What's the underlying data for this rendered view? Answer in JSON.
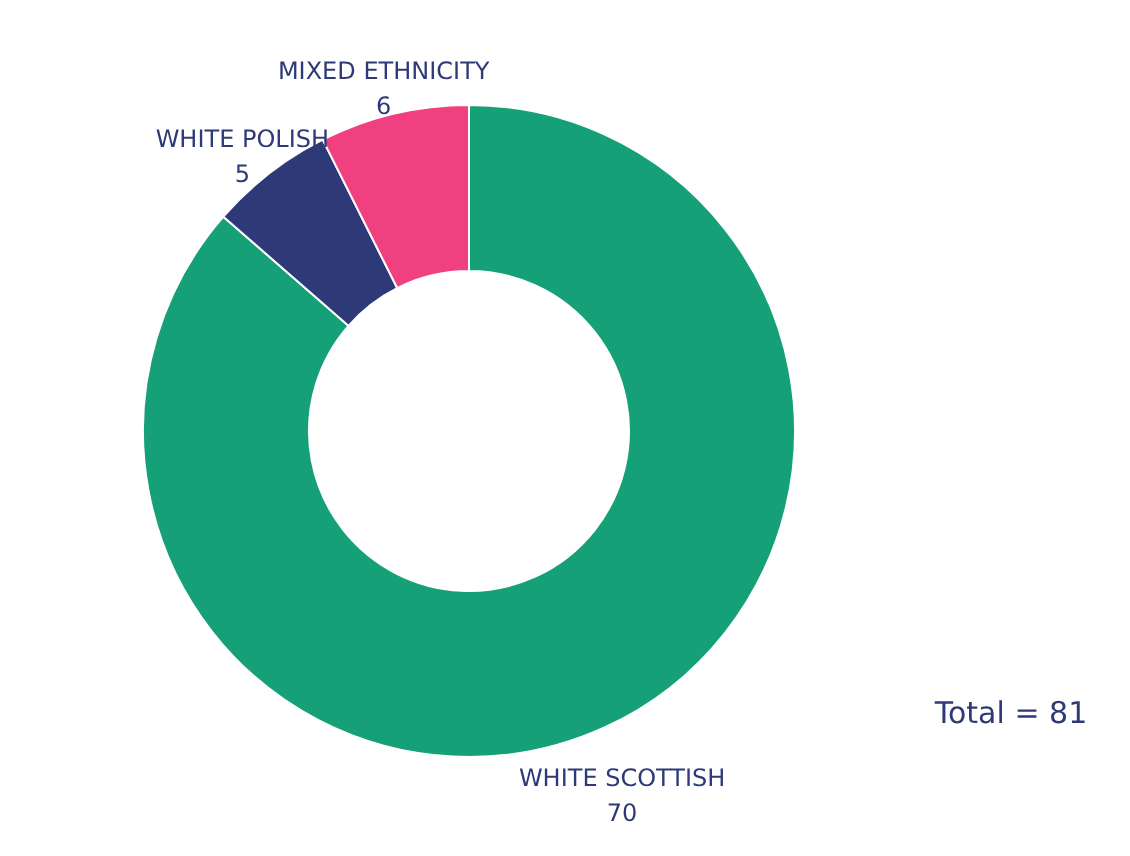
{
  "chart_data": {
    "type": "donut",
    "categories": [
      "WHITE SCOTTISH",
      "WHITE POLISH",
      "MIXED ETHNICITY"
    ],
    "values": [
      70,
      5,
      6
    ],
    "colors": [
      "#16a077",
      "#2e3a78",
      "#f0407f"
    ],
    "data_labels": true,
    "annotations": [
      "Total = 81"
    ]
  }
}
